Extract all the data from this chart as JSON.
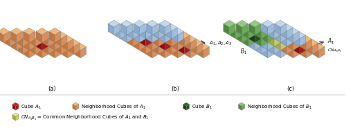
{
  "fig_width": 5.0,
  "fig_height": 1.95,
  "dpi": 100,
  "bg_color": "#ffffff",
  "cube_A_top": "#cc2222",
  "cube_A_left": "#881111",
  "cube_A_right": "#aa1a1a",
  "nbr_A_top": "#f0b87a",
  "nbr_A_left": "#c07840",
  "nbr_A_right": "#d89060",
  "cube_B_top": "#2d6e2d",
  "cube_B_left": "#1a3d1a",
  "cube_B_right": "#245224",
  "nbr_B_top": "#90cc80",
  "nbr_B_left": "#508840",
  "nbr_B_right": "#6aaa58",
  "blue_top": "#c0d8f0",
  "blue_left": "#88aad0",
  "blue_right": "#a0bedc",
  "common_top": "#eeee88",
  "common_left": "#aaaa44",
  "common_right": "#cccc66",
  "label_a": "(a)",
  "label_b": "(b)",
  "label_c": "(c)"
}
